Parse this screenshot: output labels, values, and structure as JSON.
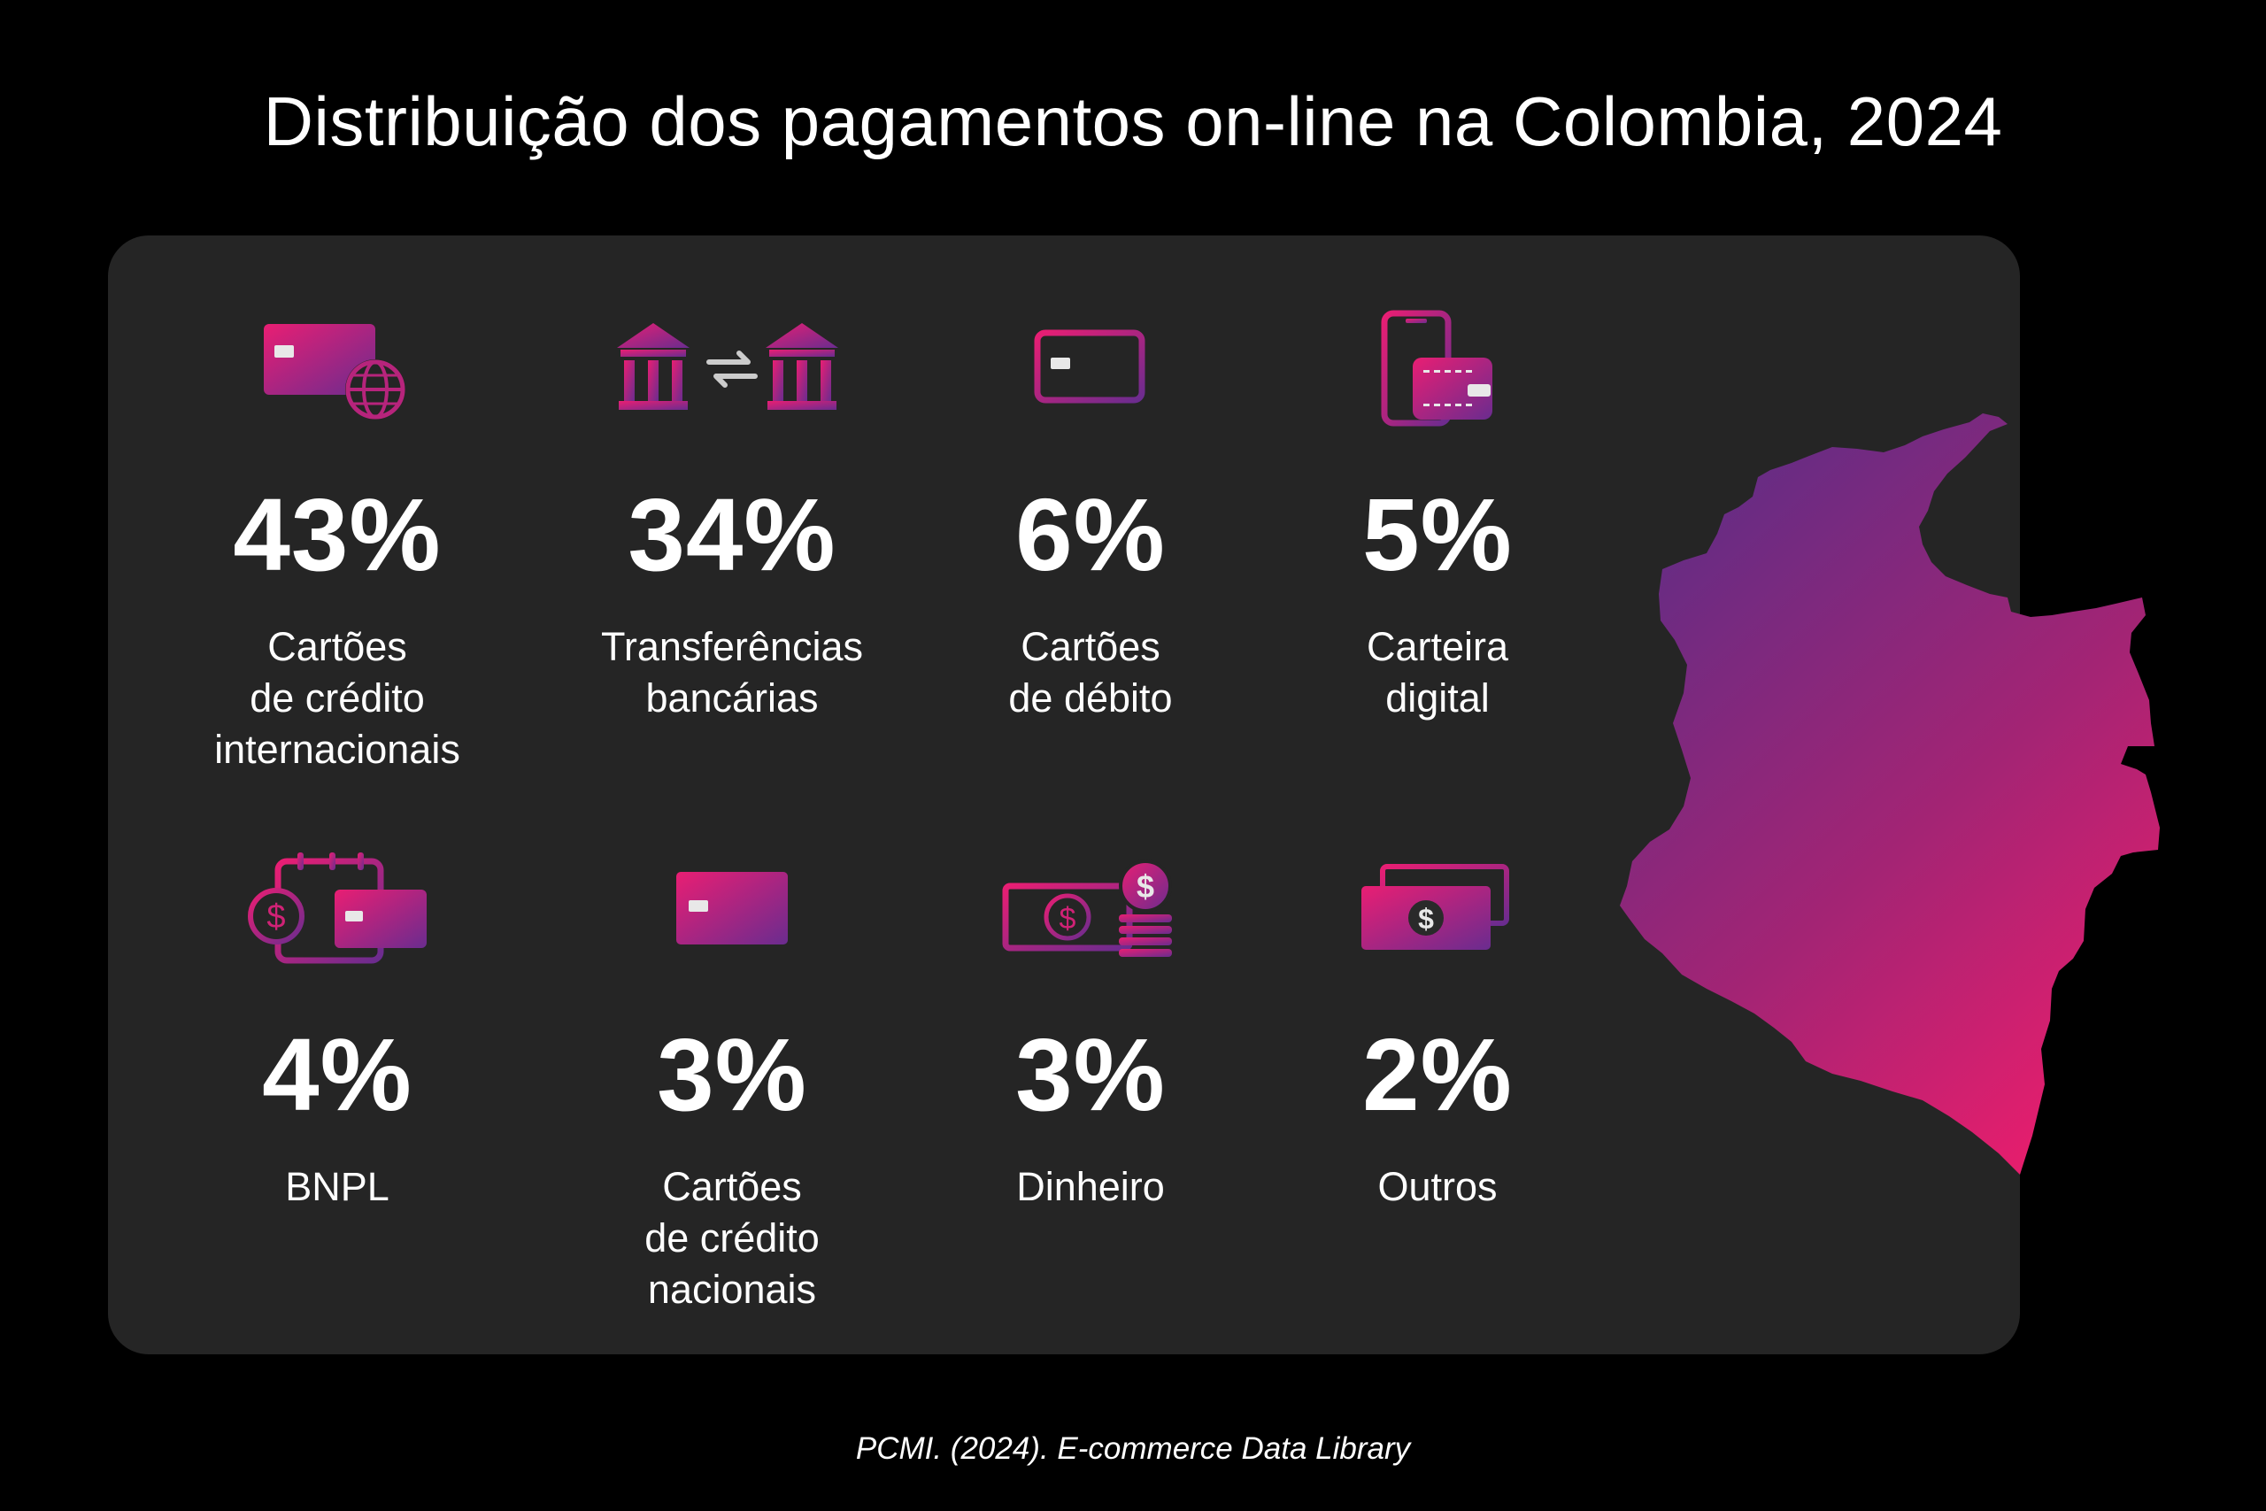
{
  "title": "Distribuição dos pagamentos on-line na Colombia, 2024",
  "colors": {
    "background": "#000000",
    "panel": "#252525",
    "gradient_start": "#e91e73",
    "gradient_end": "#6a2c8f",
    "text": "#ffffff"
  },
  "stats": [
    {
      "icon": "credit-card-globe-icon",
      "value": "43%",
      "label": "Cartões\nde crédito\ninternacionais"
    },
    {
      "icon": "bank-transfer-icon",
      "value": "34%",
      "label": "Transferências\nbancárias"
    },
    {
      "icon": "debit-card-icon",
      "value": "6%",
      "label": "Cartões\nde débito"
    },
    {
      "icon": "digital-wallet-icon",
      "value": "5%",
      "label": "Carteira\ndigital"
    },
    {
      "icon": "bnpl-calendar-icon",
      "value": "4%",
      "label": "BNPL"
    },
    {
      "icon": "credit-card-icon",
      "value": "3%",
      "label": "Cartões\nde crédito\nnacionais"
    },
    {
      "icon": "cash-coins-icon",
      "value": "3%",
      "label": "Dinheiro"
    },
    {
      "icon": "banknotes-icon",
      "value": "2%",
      "label": "Outros"
    }
  ],
  "map": {
    "icon": "colombia-map"
  },
  "source": "PCMI. (2024). E-commerce Data Library"
}
